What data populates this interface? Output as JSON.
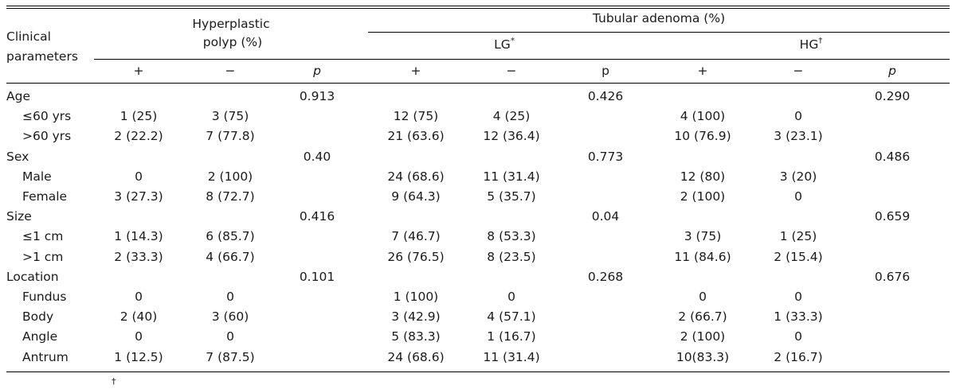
{
  "header": {
    "clinical": [
      "Clinical",
      "parameters"
    ],
    "hyperplastic": [
      "Hyperplastic",
      "polyp (%)"
    ],
    "tubular": "Tubular adenoma (%)",
    "lg": "LG",
    "lg_mark": "*",
    "hg": "HG",
    "hg_mark": "†",
    "cols": [
      "+",
      "−",
      "p",
      "+",
      "−",
      "p",
      "+",
      "−",
      "p"
    ]
  },
  "rows": [
    {
      "label": "Age",
      "indent": false,
      "cells": [
        "",
        "",
        "0.913",
        "",
        "",
        "0.426",
        "",
        "",
        "0.290"
      ]
    },
    {
      "label": "≤60 yrs",
      "indent": true,
      "cells": [
        "1 (25)",
        "3 (75)",
        "",
        "12 (75)",
        "4 (25)",
        "",
        "4 (100)",
        "0",
        ""
      ]
    },
    {
      "label": ">60 yrs",
      "indent": true,
      "cells": [
        "2 (22.2)",
        "7 (77.8)",
        "",
        "21 (63.6)",
        "12 (36.4)",
        "",
        "10 (76.9)",
        "3 (23.1)",
        ""
      ]
    },
    {
      "label": "Sex",
      "indent": false,
      "cells": [
        "",
        "",
        "0.40",
        "",
        "",
        "0.773",
        "",
        "",
        "0.486"
      ]
    },
    {
      "label": "Male",
      "indent": true,
      "cells": [
        "0",
        "2 (100)",
        "",
        "24 (68.6)",
        "11 (31.4)",
        "",
        "12 (80)",
        "3 (20)",
        ""
      ]
    },
    {
      "label": "Female",
      "indent": true,
      "cells": [
        "3 (27.3)",
        "8 (72.7)",
        "",
        "9 (64.3)",
        "5 (35.7)",
        "",
        "2 (100)",
        "0",
        ""
      ]
    },
    {
      "label": "Size",
      "indent": false,
      "cells": [
        "",
        "",
        "0.416",
        "",
        "",
        "0.04",
        "",
        "",
        "0.659"
      ]
    },
    {
      "label": "≤1 cm",
      "indent": true,
      "cells": [
        "1 (14.3)",
        "6 (85.7)",
        "",
        "7 (46.7)",
        "8 (53.3)",
        "",
        "3 (75)",
        "1 (25)",
        ""
      ]
    },
    {
      "label": ">1 cm",
      "indent": true,
      "cells": [
        "2 (33.3)",
        "4 (66.7)",
        "",
        "26 (76.5)",
        "8 (23.5)",
        "",
        "11 (84.6)",
        "2 (15.4)",
        ""
      ]
    },
    {
      "label": "Location",
      "indent": false,
      "cells": [
        "",
        "",
        "0.101",
        "",
        "",
        "0.268",
        "",
        "",
        "0.676"
      ]
    },
    {
      "label": "Fundus",
      "indent": true,
      "cells": [
        "0",
        "0",
        "",
        "1 (100)",
        "0",
        "",
        "0",
        "0",
        ""
      ]
    },
    {
      "label": "Body",
      "indent": true,
      "cells": [
        "2 (40)",
        "3 (60)",
        "",
        "3 (42.9)",
        "4 (57.1)",
        "",
        "2 (66.7)",
        "1 (33.3)",
        ""
      ]
    },
    {
      "label": "Angle",
      "indent": true,
      "cells": [
        "0",
        "0",
        "",
        "5 (83.3)",
        "1 (16.7)",
        "",
        "2 (100)",
        "0",
        ""
      ]
    },
    {
      "label": "Antrum",
      "indent": true,
      "cells": [
        "1 (12.5)",
        "7 (87.5)",
        "",
        "24 (68.6)",
        "11 (31.4)",
        "",
        "10(83.3)",
        "2 (16.7)",
        ""
      ]
    }
  ],
  "footnote_mark": "†"
}
